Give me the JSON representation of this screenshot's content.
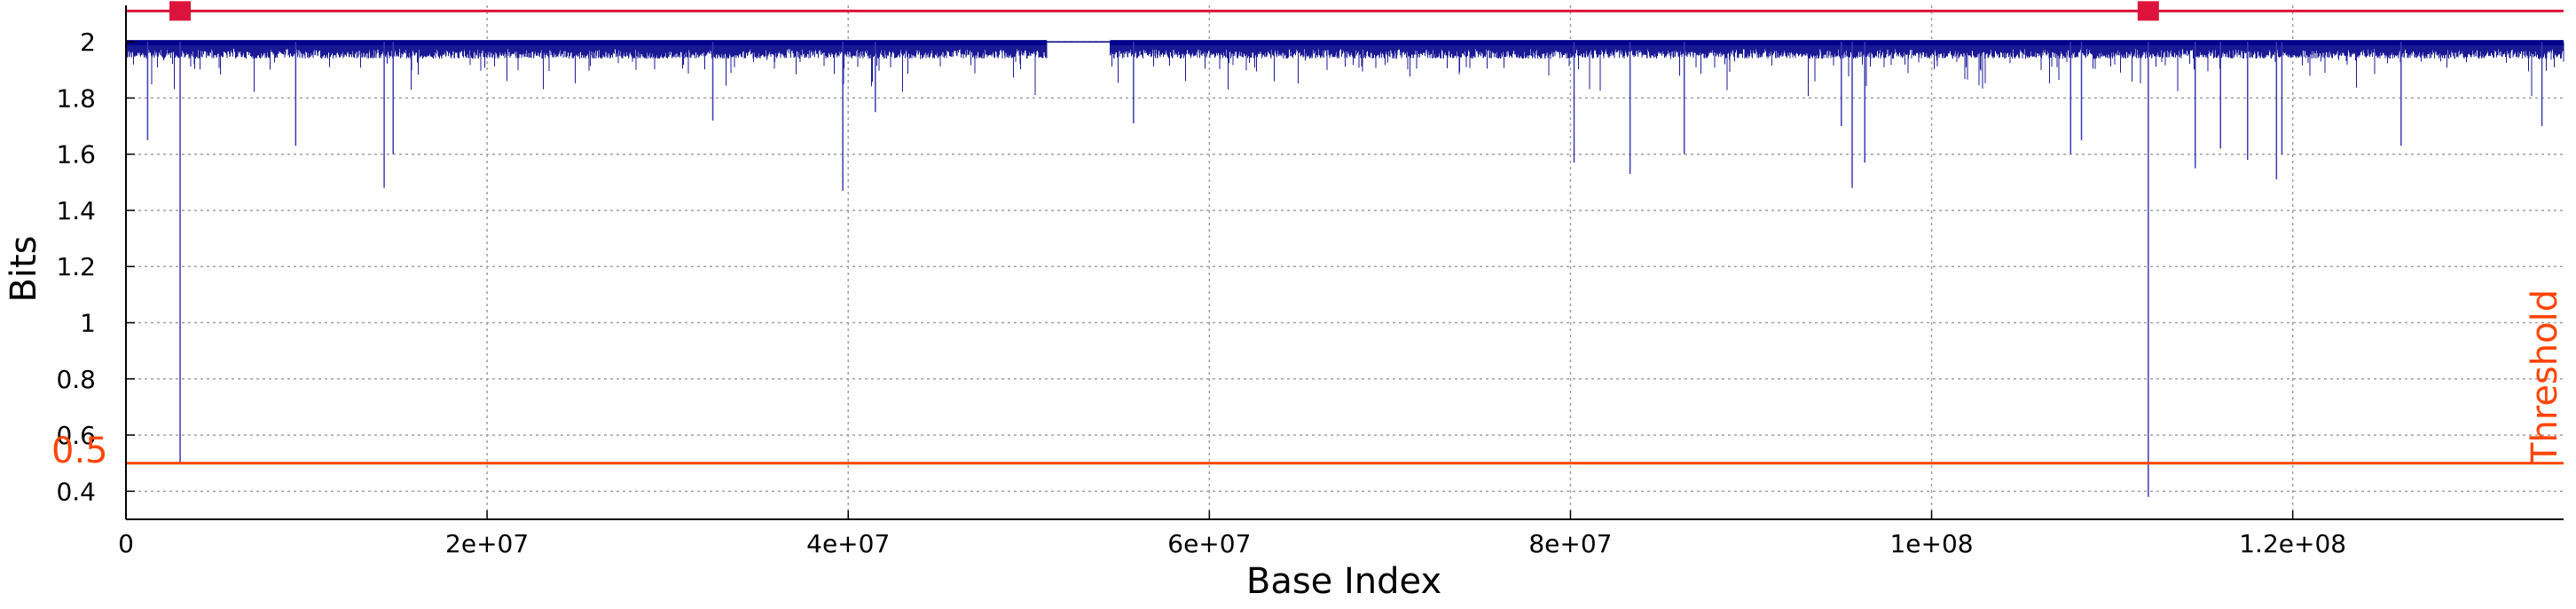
{
  "chart_data": {
    "type": "line",
    "title": "",
    "xlabel": "Base Index",
    "ylabel": "Bits",
    "xlim": [
      0,
      135000000
    ],
    "ylim": [
      0.3,
      2.13
    ],
    "grid": true,
    "x_ticks": [
      {
        "value": 0,
        "label": "0"
      },
      {
        "value": 20000000,
        "label": "2e+07"
      },
      {
        "value": 40000000,
        "label": "4e+07"
      },
      {
        "value": 60000000,
        "label": "6e+07"
      },
      {
        "value": 80000000,
        "label": "8e+07"
      },
      {
        "value": 100000000,
        "label": "1e+08"
      },
      {
        "value": 120000000,
        "label": "1.2e+08"
      }
    ],
    "y_ticks": [
      {
        "value": 0.4,
        "label": "0.4"
      },
      {
        "value": 0.6,
        "label": "0.6"
      },
      {
        "value": 0.8,
        "label": "0.8"
      },
      {
        "value": 1.0,
        "label": "1"
      },
      {
        "value": 1.2,
        "label": "1.2"
      },
      {
        "value": 1.4,
        "label": "1.4"
      },
      {
        "value": 1.6,
        "label": "1.6"
      },
      {
        "value": 1.8,
        "label": "1.8"
      },
      {
        "value": 2.0,
        "label": "2"
      }
    ],
    "series": [
      {
        "color": "#00008b",
        "baseline_upper": 2.0,
        "baseline_lower": 1.94,
        "flat_region": {
          "x_start": 51000000,
          "x_end": 54500000,
          "value": 2.0
        },
        "notable_dips": [
          {
            "x": 1200000,
            "y": 1.65
          },
          {
            "x": 3000000,
            "y": 0.5
          },
          {
            "x": 9400000,
            "y": 1.63
          },
          {
            "x": 14300000,
            "y": 1.48
          },
          {
            "x": 14800000,
            "y": 1.6
          },
          {
            "x": 32500000,
            "y": 1.72
          },
          {
            "x": 39700000,
            "y": 1.47
          },
          {
            "x": 41500000,
            "y": 1.75
          },
          {
            "x": 55800000,
            "y": 1.71
          },
          {
            "x": 80200000,
            "y": 1.57
          },
          {
            "x": 83300000,
            "y": 1.53
          },
          {
            "x": 86300000,
            "y": 1.6
          },
          {
            "x": 95000000,
            "y": 1.7
          },
          {
            "x": 95600000,
            "y": 1.48
          },
          {
            "x": 96300000,
            "y": 1.57
          },
          {
            "x": 107700000,
            "y": 1.6
          },
          {
            "x": 108300000,
            "y": 1.65
          },
          {
            "x": 112000000,
            "y": 0.38
          },
          {
            "x": 114600000,
            "y": 1.55
          },
          {
            "x": 116000000,
            "y": 1.62
          },
          {
            "x": 117500000,
            "y": 1.58
          },
          {
            "x": 119100000,
            "y": 1.51
          },
          {
            "x": 119400000,
            "y": 1.6
          },
          {
            "x": 126000000,
            "y": 1.63
          },
          {
            "x": 133800000,
            "y": 1.7
          }
        ]
      }
    ],
    "threshold": {
      "value": 0.5,
      "label": "Threshold",
      "value_label": "0.5",
      "color": "#ff4500"
    },
    "top_line": {
      "value": 2.11,
      "color": "#dc143c"
    },
    "markers": [
      {
        "x": 3000000,
        "y": 2.11,
        "color": "#dc143c"
      },
      {
        "x": 112000000,
        "y": 2.11,
        "color": "#dc143c"
      }
    ]
  }
}
